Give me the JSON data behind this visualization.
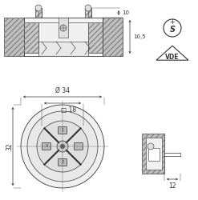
{
  "bg_color": "#ffffff",
  "line_color": "#333333",
  "fig_width": 2.47,
  "fig_height": 2.5,
  "dpi": 100,
  "annotations": {
    "dim_10": "10",
    "dim_10_5": "10,5",
    "dim_34": "Ø 34",
    "dim_18": "□ 18",
    "dim_32": "32",
    "dim_12": "12"
  }
}
